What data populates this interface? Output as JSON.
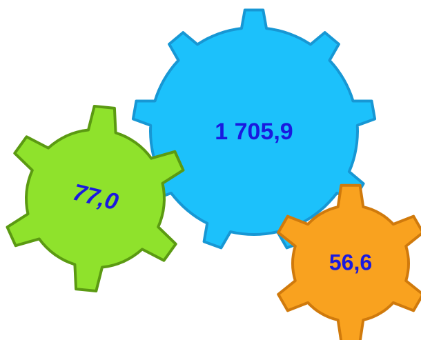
{
  "gears": [
    {
      "label": "1 705,9"
    },
    {
      "label": "77,0"
    },
    {
      "label": "56,6"
    }
  ]
}
